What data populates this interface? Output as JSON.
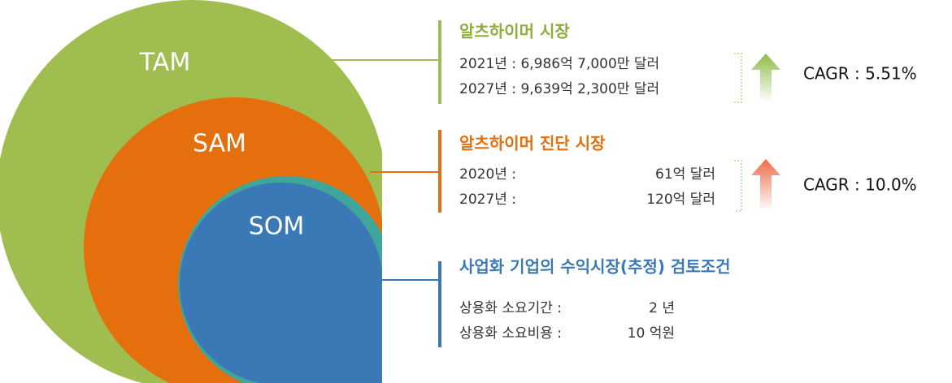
{
  "circles": {
    "tam": "TAM",
    "sam": "SAM",
    "som": "SOM"
  },
  "sections": [
    {
      "title": "알츠하이머 시장",
      "rows": [
        "2021년 : 6,986억 7,000만 달러",
        "2027년 : 9,639억 2,300만 달러"
      ],
      "cagr": "CAGR : 5.51%"
    },
    {
      "title": "알츠하이머 진단 시장",
      "rows": [
        [
          "2020년 :",
          "61억 달러"
        ],
        [
          "2027년 :",
          "120억 달러"
        ]
      ],
      "cagr": "CAGR : 10.0%"
    },
    {
      "title": "사업화 기업의 수익시장(추정) 검토조건",
      "rows": [
        [
          "상용화 소요기간 :",
          "2 년"
        ],
        [
          "상용화 소요비용 :",
          "10 억원"
        ]
      ]
    }
  ]
}
